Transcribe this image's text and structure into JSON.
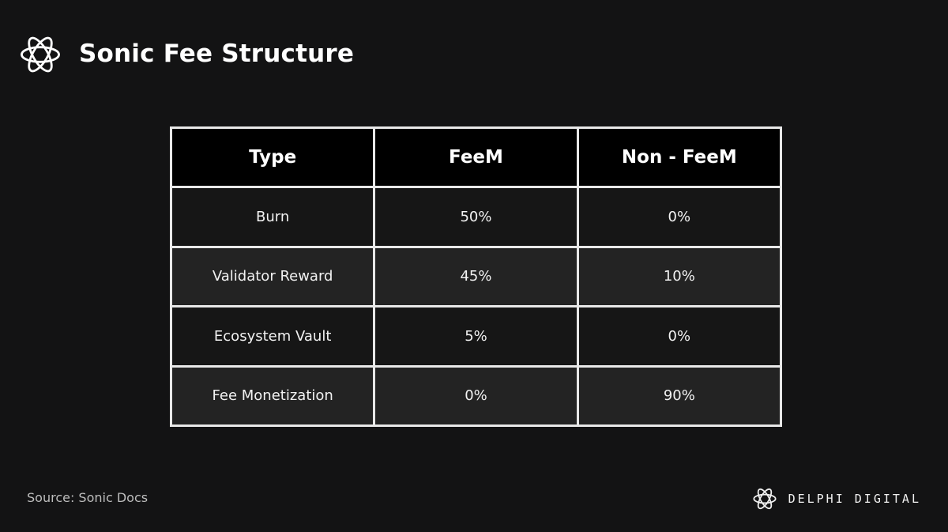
{
  "header": {
    "title": "Sonic Fee Structure",
    "logo_icon": "ring-knot-icon"
  },
  "chart_data": {
    "type": "table",
    "columns": [
      "Type",
      "FeeM",
      "Non - FeeM"
    ],
    "rows": [
      [
        "Burn",
        "50%",
        "0%"
      ],
      [
        "Validator Reward",
        "45%",
        "10%"
      ],
      [
        "Ecosystem Vault",
        "5%",
        "0%"
      ],
      [
        "Fee Monetization",
        "0%",
        "90%"
      ]
    ]
  },
  "footer": {
    "source": "Source: Sonic Docs",
    "brand": "DELPHI DIGITAL",
    "brand_icon": "ring-knot-icon"
  },
  "colors": {
    "background": "#131314",
    "header_row": "#000000",
    "border": "#e8e8e8"
  }
}
